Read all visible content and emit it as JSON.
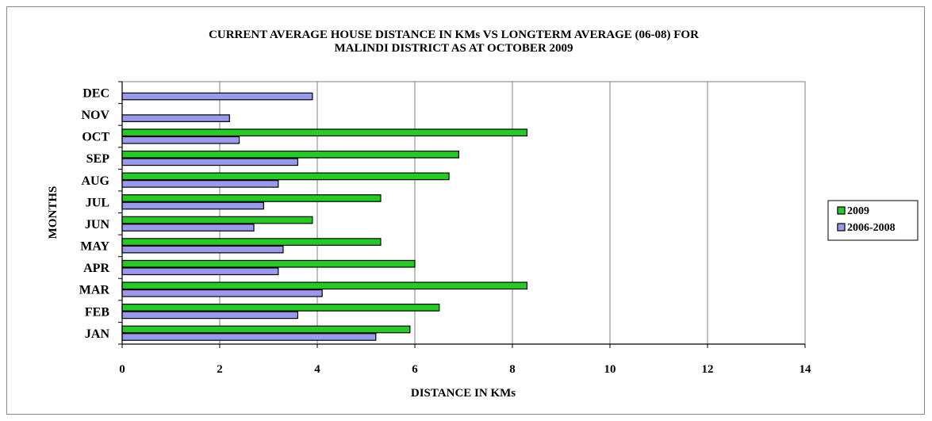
{
  "chart_data": {
    "type": "bar",
    "orientation": "horizontal",
    "title_lines": [
      "CURRENT AVERAGE HOUSE DISTANCE IN KMs VS LONGTERM AVERAGE (06-08) FOR",
      "MALINDI DISTRICT AS AT OCTOBER 2009"
    ],
    "xlabel": "DISTANCE IN KMs",
    "ylabel": "MONTHS",
    "xlim": [
      0,
      14
    ],
    "xticks": [
      "0",
      "2",
      "4",
      "6",
      "8",
      "10",
      "12",
      "14"
    ],
    "categories": [
      "JAN",
      "FEB",
      "MAR",
      "APR",
      "MAY",
      "JUN",
      "JUL",
      "AUG",
      "SEP",
      "OCT",
      "NOV",
      "DEC"
    ],
    "series": [
      {
        "name": "2009",
        "color": "#22cc22",
        "values": [
          5.9,
          6.5,
          8.3,
          6.0,
          5.3,
          3.9,
          5.3,
          6.7,
          6.9,
          8.3,
          null,
          null
        ]
      },
      {
        "name": "2006-2008",
        "color": "#9999ee",
        "values": [
          5.2,
          3.6,
          4.1,
          3.2,
          3.3,
          2.7,
          2.9,
          3.2,
          3.6,
          2.4,
          2.2,
          3.9
        ]
      }
    ],
    "grid": "vertical",
    "legend_position": "right"
  }
}
